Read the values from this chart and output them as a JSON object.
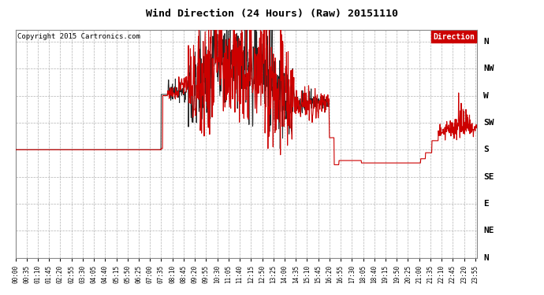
{
  "title": "Wind Direction (24 Hours) (Raw) 20151110",
  "copyright": "Copyright 2015 Cartronics.com",
  "legend_label": "Direction",
  "legend_bg_color": "#cc0000",
  "legend_text_color": "#ffffff",
  "background_color": "#ffffff",
  "grid_color": "#aaaaaa",
  "line_color_red": "#cc0000",
  "line_color_black": "#222222",
  "ytick_labels_right": [
    "N",
    "NW",
    "W",
    "SW",
    "S",
    "SE",
    "E",
    "NE",
    "N"
  ],
  "ytick_values": [
    360,
    315,
    270,
    225,
    180,
    135,
    90,
    45,
    0
  ],
  "ylim": [
    0,
    380
  ],
  "xlim_minutes": [
    0,
    1440
  ],
  "xtick_step_minutes": 35,
  "note": "x-axis ticks every 35 min: 00:00, 00:35, 01:10, 01:45 ...",
  "red_segments": [
    {
      "t0": 0,
      "t1": 455,
      "v": 180,
      "noise": 0
    },
    {
      "t0": 455,
      "t1": 460,
      "v": 182,
      "noise": 0
    },
    {
      "t0": 460,
      "t1": 475,
      "v": 270,
      "noise": 0
    },
    {
      "t0": 475,
      "t1": 510,
      "v": 275,
      "noise": 5
    },
    {
      "t0": 510,
      "t1": 540,
      "v": 290,
      "noise": 10
    },
    {
      "t0": 540,
      "t1": 870,
      "v": -1,
      "noise": 0
    },
    {
      "t0": 870,
      "t1": 980,
      "v": 255,
      "noise": 12
    },
    {
      "t0": 980,
      "t1": 995,
      "v": 200,
      "noise": 0
    },
    {
      "t0": 995,
      "t1": 1010,
      "v": 155,
      "noise": 0
    },
    {
      "t0": 1010,
      "t1": 1025,
      "v": 162,
      "noise": 0
    },
    {
      "t0": 1025,
      "t1": 1080,
      "v": 162,
      "noise": 0
    },
    {
      "t0": 1080,
      "t1": 1265,
      "v": 158,
      "noise": 0
    },
    {
      "t0": 1265,
      "t1": 1280,
      "v": 165,
      "noise": 0
    },
    {
      "t0": 1280,
      "t1": 1300,
      "v": 175,
      "noise": 0
    },
    {
      "t0": 1300,
      "t1": 1320,
      "v": 195,
      "noise": 0
    },
    {
      "t0": 1320,
      "t1": 1340,
      "v": 210,
      "noise": 5
    },
    {
      "t0": 1340,
      "t1": 1360,
      "v": 215,
      "noise": 8
    },
    {
      "t0": 1360,
      "t1": 1380,
      "v": 218,
      "noise": 12
    },
    {
      "t0": 1380,
      "t1": 1400,
      "v": 225,
      "noise": 15
    },
    {
      "t0": 1400,
      "t1": 1420,
      "v": 220,
      "noise": 10
    },
    {
      "t0": 1420,
      "t1": 1440,
      "v": 215,
      "noise": 5
    }
  ],
  "black_segments": [
    {
      "t0": 0,
      "t1": 455,
      "v": 180,
      "noise": 0
    },
    {
      "t0": 455,
      "t1": 475,
      "v": 272,
      "noise": 0
    },
    {
      "t0": 475,
      "t1": 540,
      "v": 278,
      "noise": 8
    },
    {
      "t0": 540,
      "t1": 870,
      "v": -1,
      "noise": 0
    },
    {
      "t0": 870,
      "t1": 980,
      "v": 258,
      "noise": 8
    },
    {
      "t0": 980,
      "t1": 1440,
      "v": 999,
      "noise": 0
    }
  ],
  "chaos_params": {
    "start": 540,
    "end": 870,
    "base_red": 270,
    "base_black": 268,
    "amplitude": 60,
    "noise_red": 50,
    "noise_black": 40,
    "clip_low": 130,
    "clip_high": 385
  }
}
